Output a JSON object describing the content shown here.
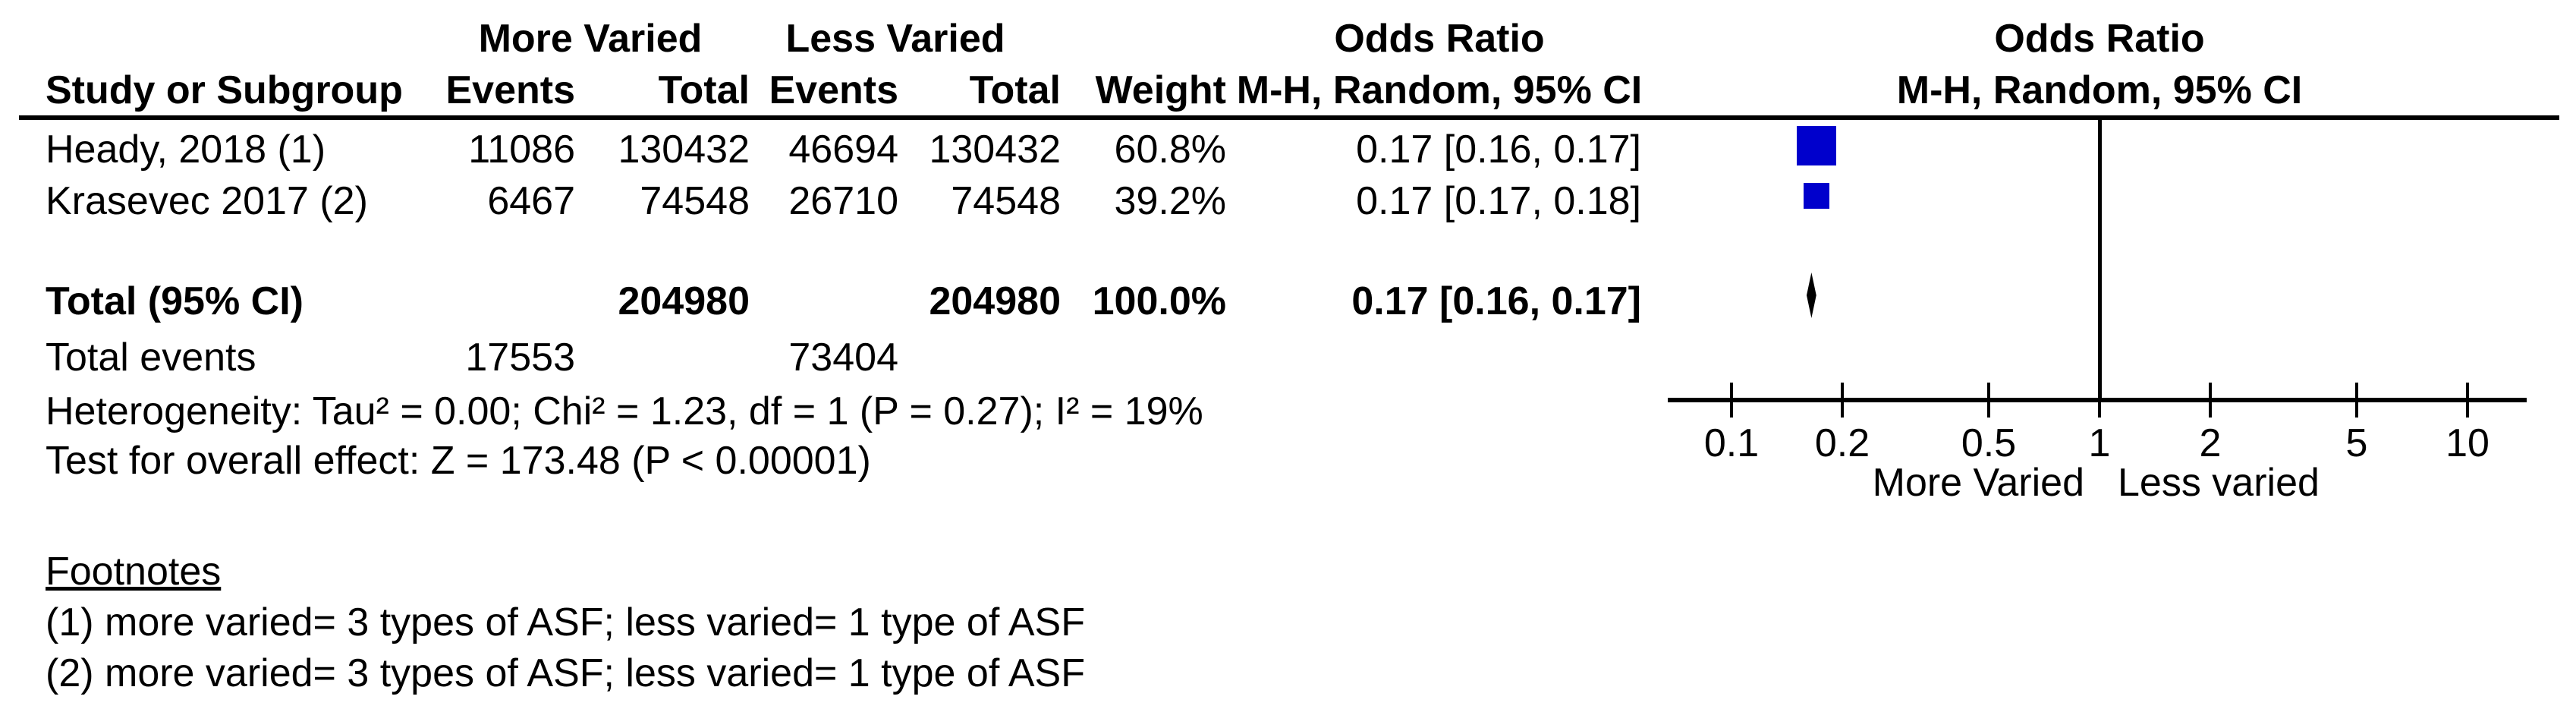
{
  "table": {
    "group_headers": {
      "group1": "More Varied",
      "group2": "Less Varied",
      "or_stat": "Odds Ratio",
      "or_plot": "Odds Ratio"
    },
    "col_headers": {
      "study": "Study or Subgroup",
      "events1": "Events",
      "total1": "Total",
      "events2": "Events",
      "total2": "Total",
      "weight": "Weight",
      "ci_stat": "M-H, Random, 95% CI",
      "ci_plot": "M-H, Random, 95% CI"
    },
    "rows": [
      {
        "study": "Heady, 2018 (1)",
        "events1": "11086",
        "total1": "130432",
        "events2": "46694",
        "total2": "130432",
        "weight": "60.8%",
        "ci": "0.17 [0.16, 0.17]"
      },
      {
        "study": "Krasevec 2017 (2)",
        "events1": "6467",
        "total1": "74548",
        "events2": "26710",
        "total2": "74548",
        "weight": "39.2%",
        "ci": "0.17 [0.17, 0.18]"
      }
    ],
    "total_row": {
      "label": "Total (95% CI)",
      "total1": "204980",
      "total2": "204980",
      "weight": "100.0%",
      "ci": "0.17 [0.16, 0.17]"
    },
    "total_events_row": {
      "label": "Total events",
      "events1": "17553",
      "events2": "73404"
    },
    "heterogeneity": "Heterogeneity: Tau² = 0.00; Chi² = 1.23, df = 1 (P = 0.27); I² = 19%",
    "overall_effect": "Test for overall effect: Z = 173.48 (P < 0.00001)"
  },
  "plot": {
    "tick_labels": [
      "0.1",
      "0.2",
      "0.5",
      "1",
      "2",
      "5",
      "10"
    ],
    "left_label": "More Varied",
    "right_label": "Less varied"
  },
  "footnotes": {
    "heading": "Footnotes",
    "items": [
      "(1) more varied= 3 types of ASF; less varied= 1 type of ASF",
      "(2) more varied= 3 types of ASF; less varied= 1 type of ASF"
    ]
  },
  "chart_data": {
    "type": "scatter",
    "subtype": "forest-plot-meta-analysis",
    "effect_measure": "Odds Ratio",
    "method": "M-H, Random, 95% CI",
    "x_scale": "log",
    "x_ticks": [
      0.1,
      0.2,
      0.5,
      1,
      2,
      5,
      10
    ],
    "xlim": [
      0.1,
      10
    ],
    "x_axis_left_label": "More Varied",
    "x_axis_right_label": "Less varied",
    "marker_color": "#0000CC",
    "studies": [
      {
        "name": "Heady, 2018 (1)",
        "events_more_varied": 11086,
        "total_more_varied": 130432,
        "events_less_varied": 46694,
        "total_less_varied": 130432,
        "weight_pct": 60.8,
        "or": 0.17,
        "ci_low": 0.16,
        "ci_high": 0.17
      },
      {
        "name": "Krasevec 2017 (2)",
        "events_more_varied": 6467,
        "total_more_varied": 74548,
        "events_less_varied": 26710,
        "total_less_varied": 74548,
        "weight_pct": 39.2,
        "or": 0.17,
        "ci_low": 0.17,
        "ci_high": 0.18
      }
    ],
    "total": {
      "label": "Total (95% CI)",
      "total_more_varied": 204980,
      "total_less_varied": 204980,
      "weight_pct": 100.0,
      "or": 0.17,
      "ci_low": 0.16,
      "ci_high": 0.17,
      "total_events_more_varied": 17553,
      "total_events_less_varied": 73404
    },
    "heterogeneity": "Heterogeneity: Tau² = 0.00; Chi² = 1.23, df = 1 (P = 0.27); I² = 19%",
    "overall_effect": "Test for overall effect: Z = 173.48 (P < 0.00001)"
  }
}
